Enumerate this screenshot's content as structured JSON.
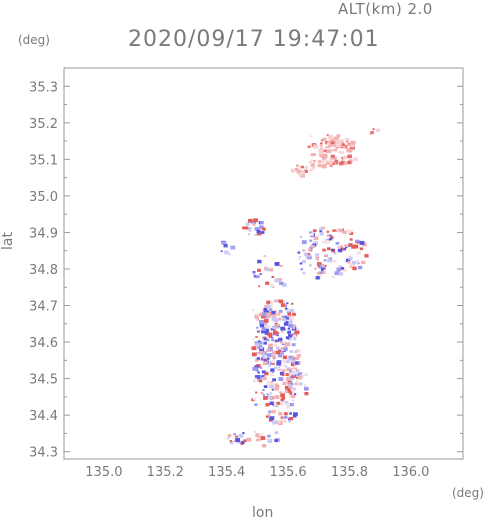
{
  "header": {
    "alt_label": "ALT(km) 2.0",
    "time_label": "2020/09/17 19:47:01"
  },
  "chart_data": {
    "type": "scatter",
    "title": "2020/09/17 19:47:01",
    "subtitle": "ALT(km) 2.0",
    "xlabel": "lon",
    "ylabel": "lat",
    "x_unit": "(deg)",
    "y_unit": "(deg)",
    "xlim": [
      134.87,
      136.17
    ],
    "ylim": [
      34.28,
      35.35
    ],
    "xticks": [
      "135.0",
      "135.2",
      "135.4",
      "135.6",
      "135.8",
      "136.0"
    ],
    "yticks": [
      "34.3",
      "34.4",
      "34.5",
      "34.6",
      "34.7",
      "34.8",
      "34.9",
      "35.0",
      "35.1",
      "35.2",
      "35.3"
    ],
    "grid": false,
    "colors": {
      "axis": "#9a9a9a",
      "positive": "#f08a8a",
      "negative": "#7a7af0",
      "neutral": "#f2c8c8"
    },
    "clusters": [
      {
        "name": "northeast-echo",
        "lon": [
          135.66,
          135.82
        ],
        "lat": [
          35.08,
          35.17
        ],
        "tone": "positive",
        "density": 0.8
      },
      {
        "name": "northeast-tail",
        "lon": [
          135.6,
          135.68
        ],
        "lat": [
          35.06,
          35.1
        ],
        "tone": "positive",
        "density": 0.5
      },
      {
        "name": "north-isolated",
        "lon": [
          135.86,
          135.9
        ],
        "lat": [
          35.17,
          35.19
        ],
        "tone": "positive",
        "density": 0.6
      },
      {
        "name": "mid-west-patch",
        "lon": [
          135.45,
          135.52
        ],
        "lat": [
          34.89,
          34.94
        ],
        "tone": "mixed",
        "density": 0.6
      },
      {
        "name": "west-small",
        "lon": [
          135.37,
          135.42
        ],
        "lat": [
          34.84,
          34.88
        ],
        "tone": "negative",
        "density": 0.5
      },
      {
        "name": "mid-strip",
        "lon": [
          135.48,
          135.58
        ],
        "lat": [
          34.74,
          34.84
        ],
        "tone": "mixed",
        "density": 0.25
      },
      {
        "name": "east-band",
        "lon": [
          135.63,
          135.85
        ],
        "lat": [
          34.78,
          34.92
        ],
        "tone": "mixed",
        "density": 0.45
      },
      {
        "name": "central-core",
        "lon": [
          135.48,
          135.63
        ],
        "lat": [
          34.42,
          34.72
        ],
        "tone": "mixed",
        "density": 0.85
      },
      {
        "name": "core-east",
        "lon": [
          135.6,
          135.66
        ],
        "lat": [
          34.45,
          34.55
        ],
        "tone": "mixed",
        "density": 0.4
      },
      {
        "name": "south-strip",
        "lon": [
          135.52,
          135.62
        ],
        "lat": [
          34.38,
          34.42
        ],
        "tone": "mixed",
        "density": 0.6
      },
      {
        "name": "southwest-dots",
        "lon": [
          135.4,
          135.56
        ],
        "lat": [
          34.32,
          34.36
        ],
        "tone": "mixed",
        "density": 0.5
      }
    ]
  }
}
